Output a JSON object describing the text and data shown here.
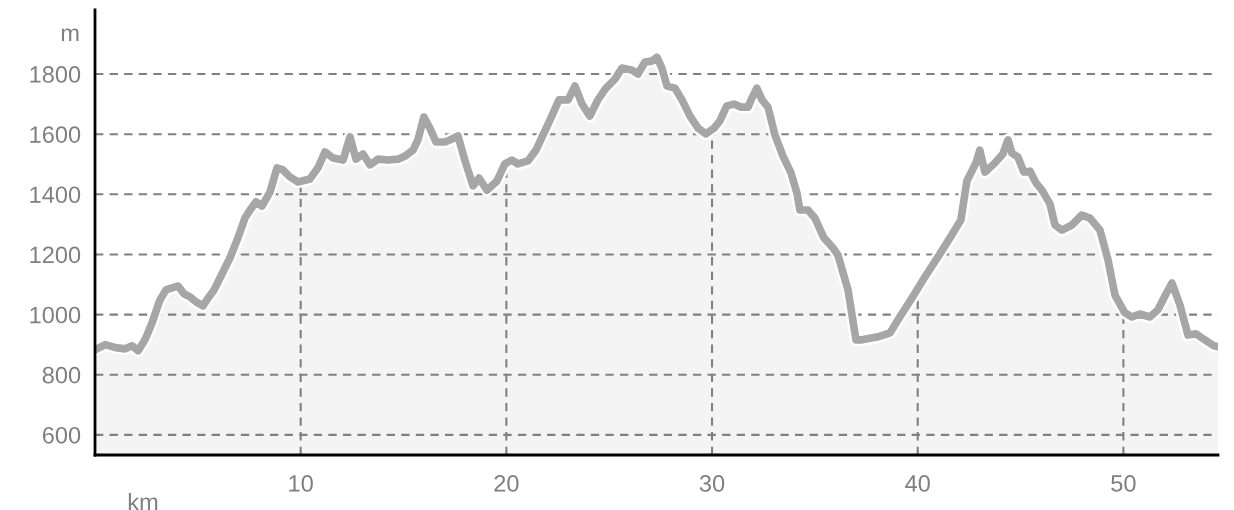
{
  "chart_data": {
    "type": "area",
    "xlabel": "km",
    "ylabel": "m",
    "x": [
      0,
      0.5,
      1.0,
      1.46,
      1.8,
      2.1,
      2.43,
      2.77,
      3.16,
      3.45,
      3.74,
      4.04,
      4.33,
      4.62,
      4.91,
      5.25,
      5.44,
      5.79,
      6.13,
      6.56,
      6.95,
      7.29,
      7.54,
      7.83,
      8.12,
      8.51,
      8.85,
      9.14,
      9.48,
      9.87,
      10.45,
      10.84,
      11.18,
      11.57,
      12.06,
      12.4,
      12.69,
      13.03,
      13.37,
      13.76,
      14.24,
      14.73,
      15.07,
      15.46,
      15.7,
      15.99,
      16.28,
      16.58,
      17.02,
      17.36,
      17.65,
      17.99,
      18.38,
      18.67,
      19.06,
      19.54,
      19.93,
      20.27,
      20.56,
      21.05,
      21.44,
      22.12,
      22.56,
      23.0,
      23.34,
      23.68,
      24.06,
      24.45,
      24.84,
      25.28,
      25.62,
      26.11,
      26.4,
      26.74,
      27.08,
      27.32,
      27.56,
      27.81,
      28.2,
      28.54,
      28.93,
      29.32,
      29.7,
      30.1,
      30.38,
      30.72,
      31.07,
      31.41,
      31.75,
      31.94,
      32.18,
      32.43,
      32.72,
      33.06,
      33.45,
      33.84,
      34.13,
      34.27,
      34.66,
      35.0,
      35.44,
      35.88,
      36.12,
      36.61,
      37.0,
      37.29,
      38.07,
      38.65,
      39.13,
      39.72,
      40.35,
      41.08,
      41.66,
      42.1,
      42.39,
      42.83,
      43.02,
      43.27,
      43.75,
      44.14,
      44.39,
      44.58,
      44.87,
      45.16,
      45.46,
      45.75,
      46.04,
      46.43,
      46.67,
      47.01,
      47.5,
      47.98,
      48.37,
      48.86,
      49.25,
      49.59,
      50.07,
      50.41,
      50.8,
      51.29,
      51.68,
      52.02,
      52.36,
      52.75,
      53.14,
      53.53,
      53.96,
      54.4,
      54.6
    ],
    "series": [
      {
        "color": "#a6a6a6",
        "values": [
          883,
          900,
          890,
          886,
          896,
          880,
          916,
          972,
          1049,
          1082,
          1089,
          1095,
          1069,
          1059,
          1042,
          1029,
          1049,
          1082,
          1129,
          1188,
          1255,
          1321,
          1348,
          1375,
          1361,
          1408,
          1488,
          1481,
          1458,
          1441,
          1451,
          1488,
          1541,
          1521,
          1514,
          1591,
          1517,
          1534,
          1498,
          1517,
          1514,
          1517,
          1527,
          1547,
          1581,
          1657,
          1620,
          1574,
          1574,
          1584,
          1594,
          1511,
          1428,
          1454,
          1414,
          1444,
          1501,
          1514,
          1501,
          1511,
          1547,
          1647,
          1714,
          1714,
          1760,
          1700,
          1660,
          1714,
          1753,
          1783,
          1820,
          1813,
          1800,
          1840,
          1843,
          1856,
          1820,
          1760,
          1753,
          1714,
          1660,
          1620,
          1601,
          1620,
          1644,
          1694,
          1700,
          1690,
          1690,
          1720,
          1753,
          1714,
          1690,
          1597,
          1527,
          1471,
          1404,
          1348,
          1348,
          1321,
          1255,
          1222,
          1198,
          1082,
          916,
          916,
          926,
          939,
          992,
          1055,
          1125,
          1202,
          1265,
          1315,
          1444,
          1504,
          1547,
          1474,
          1504,
          1534,
          1581,
          1537,
          1524,
          1474,
          1477,
          1438,
          1414,
          1368,
          1298,
          1281,
          1298,
          1331,
          1321,
          1281,
          1182,
          1065,
          1006,
          992,
          1002,
          992,
          1016,
          1062,
          1105,
          1032,
          932,
          936,
          916,
          896,
          893
        ]
      }
    ],
    "xlim": [
      0,
      54.6
    ],
    "ylim": [
      533,
      2013
    ],
    "xticks": [
      10,
      20,
      30,
      40,
      50
    ],
    "yticks": [
      600,
      800,
      1000,
      1200,
      1400,
      1600,
      1800
    ],
    "grid": true,
    "line_style": "dashed"
  }
}
